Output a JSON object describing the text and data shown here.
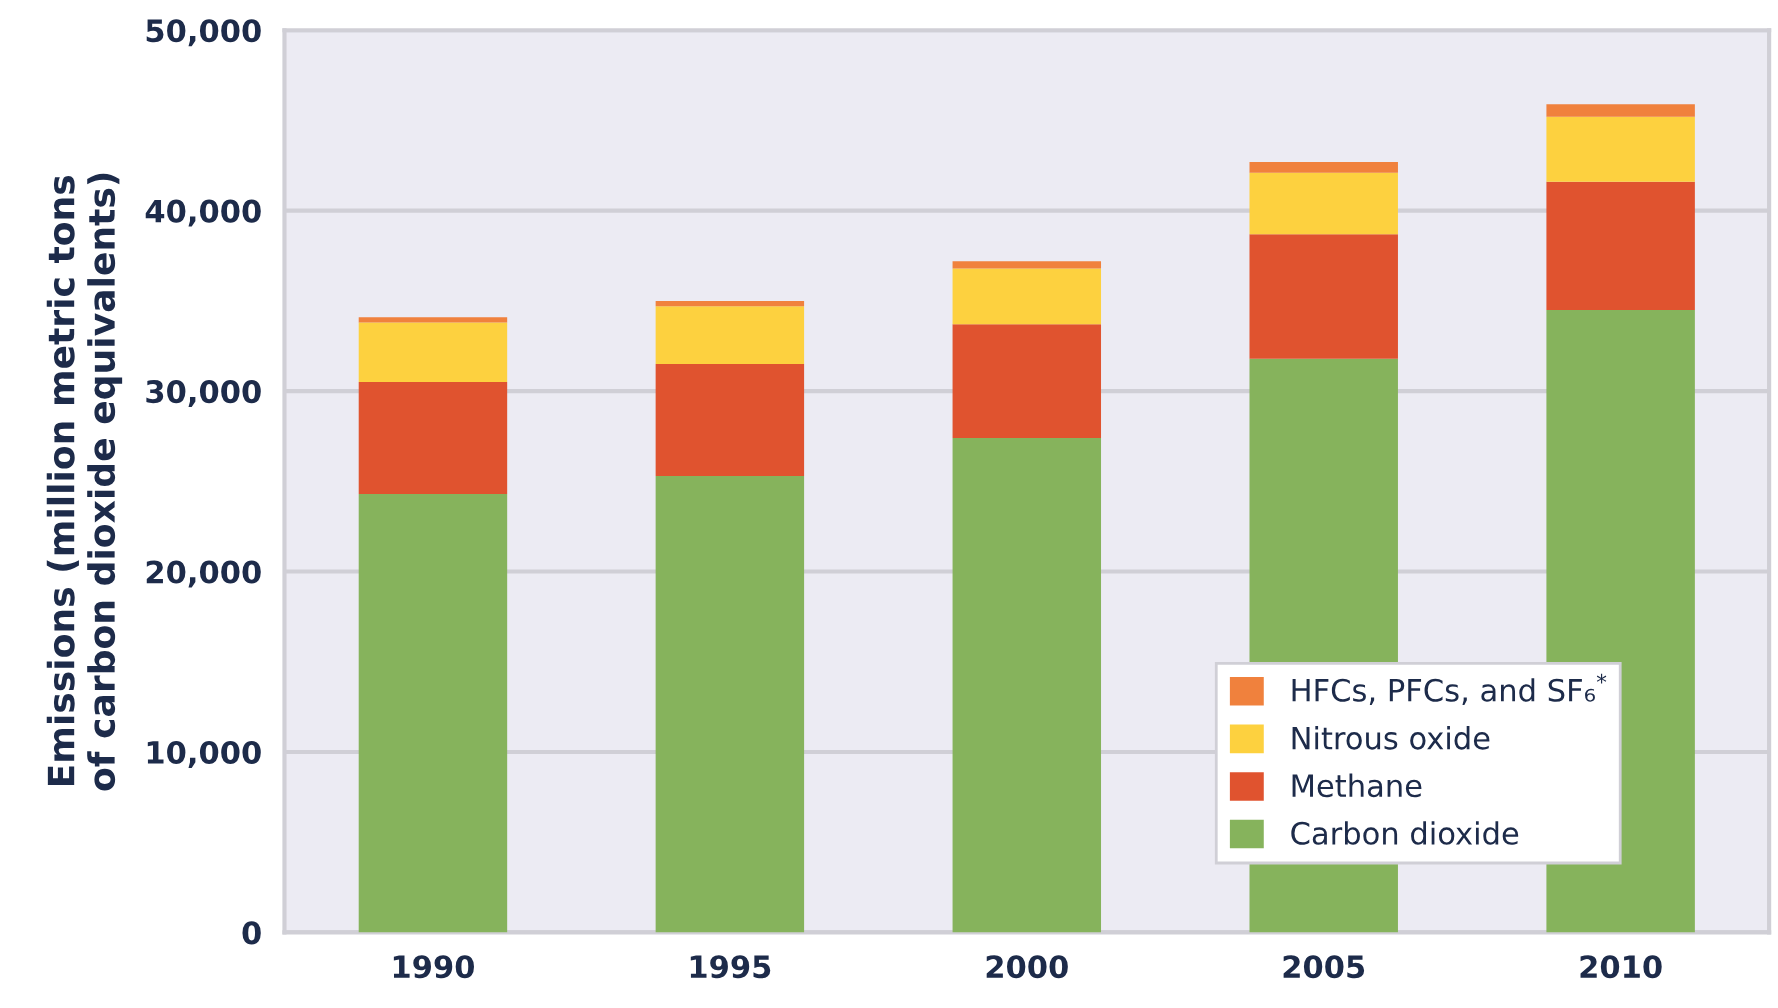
{
  "chart_data": {
    "type": "bar",
    "stacked": true,
    "ylabel": "Emissions (million metric tons\nof carbon dioxide equivalents)",
    "categories": [
      "1990",
      "1995",
      "2000",
      "2005",
      "2010"
    ],
    "series": [
      {
        "name": "Carbon dioxide",
        "color": "#86b35c",
        "values": [
          24300,
          25300,
          27400,
          31800,
          34500
        ]
      },
      {
        "name": "Methane",
        "color": "#e0532f",
        "values": [
          6200,
          6200,
          6300,
          6900,
          7100
        ]
      },
      {
        "name": "Nitrous oxide",
        "color": "#fdd13f",
        "values": [
          3300,
          3200,
          3100,
          3400,
          3600
        ]
      },
      {
        "name": "HFCs, PFCs, and SF₆$^{*}$",
        "color": "#f0813d",
        "values": [
          300,
          300,
          400,
          600,
          700
        ]
      }
    ],
    "ylim": [
      0,
      50000
    ],
    "yticks": [
      {
        "value": 0,
        "label": "0"
      },
      {
        "value": 10000,
        "label": "10,000"
      },
      {
        "value": 20000,
        "label": "20,000"
      },
      {
        "value": 30000,
        "label": "30,000"
      },
      {
        "value": 40000,
        "label": "40,000"
      },
      {
        "value": 50000,
        "label": "50,000"
      }
    ],
    "grid": "y",
    "legend": "bottom right"
  }
}
